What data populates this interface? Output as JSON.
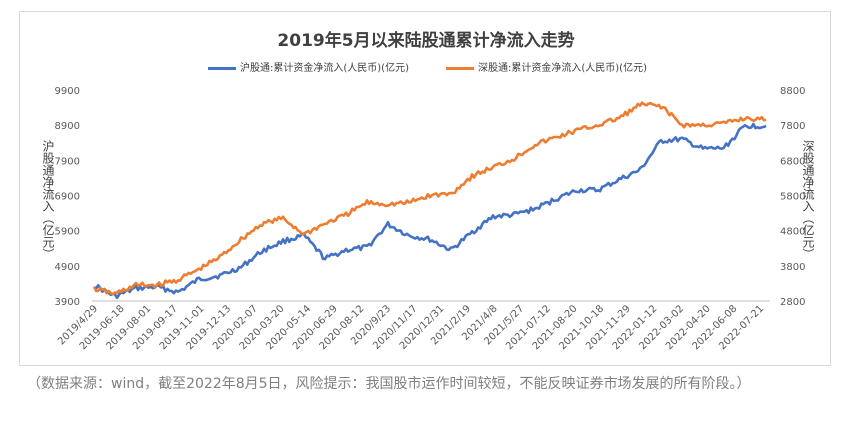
{
  "caption": "（数据来源：wind，截至2022年8月5日，风险提示：我国股市运作时间较短，不能反映证券市场发展的所有阶段。）",
  "chart_data": {
    "type": "line",
    "title": "2019年5月以来陆股通累计净流入走势",
    "left_axis_label": "沪股通净流入（亿元）",
    "right_axis_label": "深股通净流入（亿元）",
    "left_ylim": [
      3900,
      9900
    ],
    "right_ylim": [
      2800,
      8800
    ],
    "left_ticks": [
      3900,
      4900,
      5900,
      6900,
      7900,
      8900,
      9900
    ],
    "right_ticks": [
      2800,
      3800,
      4800,
      5800,
      6800,
      7800,
      8800
    ],
    "grid": false,
    "legend_position": "top",
    "x_tick_labels": [
      "2019/4/29",
      "2019-06-18",
      "2019-08-01",
      "2019-09-17",
      "2019-11-01",
      "2019-12-13",
      "2020-02-07",
      "2020-03-20",
      "2020-05-14",
      "2020-06-29",
      "2020-08-12",
      "2020/9/23",
      "2020/11/17",
      "2020/12/31",
      "2021/2/19",
      "2021/4/8",
      "2021/5/27",
      "2021-07-12",
      "2021-08-20",
      "2021-10-18",
      "2021-11-29",
      "2022-01-12",
      "2022-03-02",
      "2022-04-20",
      "2022-06-08",
      "2022-07-21"
    ],
    "series": [
      {
        "name": "沪股通:累计资金净流入(人民币)(亿元)",
        "axis": "left",
        "color": "#4472c4",
        "values": [
          4350,
          4030,
          4260,
          4300,
          4150,
          4520,
          4620,
          4860,
          5320,
          5600,
          5760,
          5100,
          5350,
          5420,
          6080,
          5760,
          5650,
          5350,
          5850,
          6300,
          6350,
          6520,
          6800,
          7050,
          7050,
          7350,
          7620,
          8450,
          8500,
          8220,
          8250,
          8880,
          8880
        ]
      },
      {
        "name": "深股通:累计资金净流入(人民币)(亿元)",
        "axis": "right",
        "color": "#ed7d31",
        "values": [
          3150,
          3000,
          3250,
          3250,
          3400,
          3700,
          4050,
          4550,
          5000,
          5150,
          4700,
          5000,
          5250,
          5600,
          5550,
          5600,
          5800,
          5850,
          6350,
          6600,
          6850,
          7250,
          7450,
          7650,
          7800,
          8000,
          8380,
          8350,
          7800,
          7800,
          7850,
          8000,
          7950
        ]
      }
    ]
  }
}
